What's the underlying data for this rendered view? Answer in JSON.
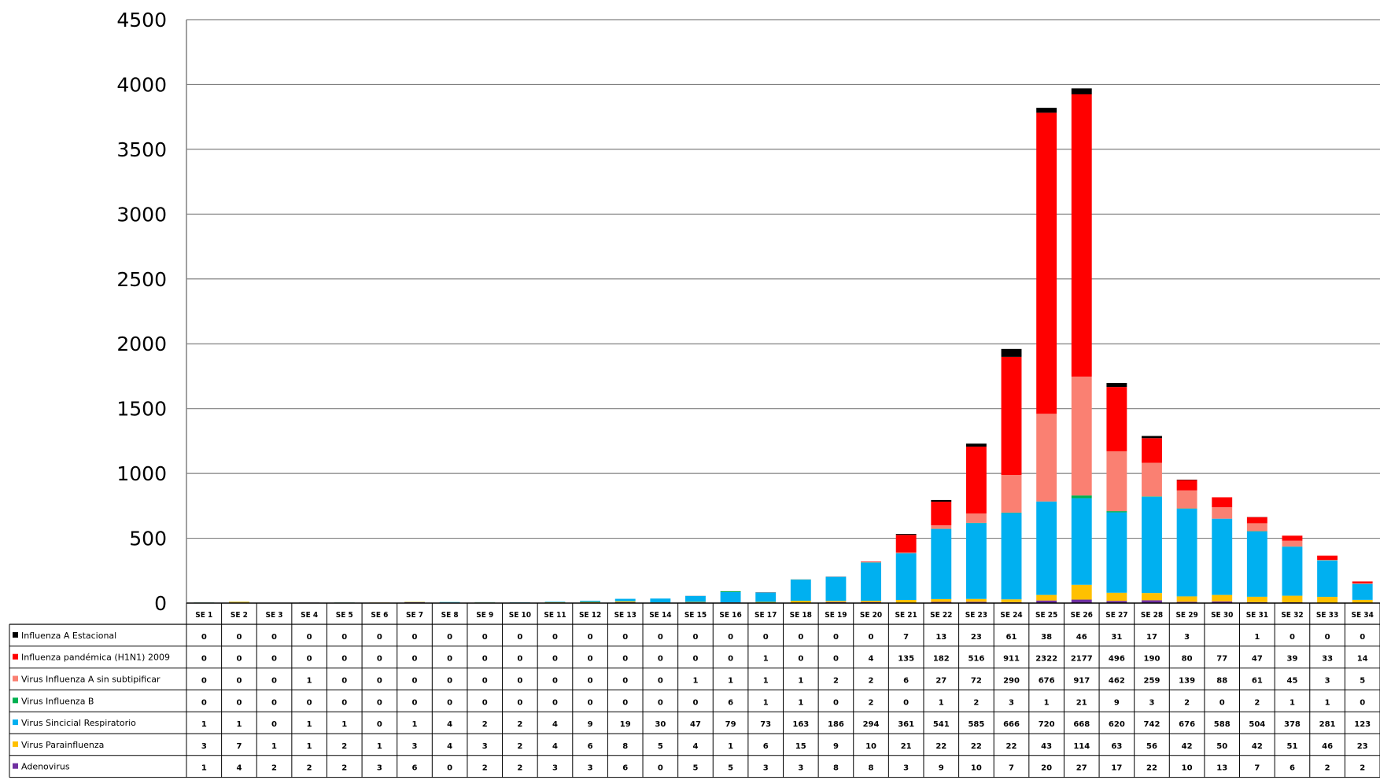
{
  "chart_data": {
    "type": "bar",
    "stacked": true,
    "ylim": [
      0,
      4500
    ],
    "yticks": [
      "0",
      "500",
      "1000",
      "1500",
      "2000",
      "2500",
      "3000",
      "3500",
      "4000",
      "4500"
    ],
    "grid": true,
    "legend": "data-table",
    "categories": [
      "SE 1",
      "SE 2",
      "SE 3",
      "SE 4",
      "SE 5",
      "SE 6",
      "SE 7",
      "SE 8",
      "SE 9",
      "SE 10",
      "SE 11",
      "SE 12",
      "SE 13",
      "SE 14",
      "SE 15",
      "SE 16",
      "SE 17",
      "SE 18",
      "SE 19",
      "SE 20",
      "SE 21",
      "SE 22",
      "SE 23",
      "SE 24",
      "SE 25",
      "SE 26",
      "SE 27",
      "SE 28",
      "SE 29",
      "SE 30",
      "SE 31",
      "SE 32",
      "SE 33",
      "SE 34"
    ],
    "series": [
      {
        "name": "Influenza A Estacional",
        "color": "#000000",
        "values": [
          0,
          0,
          0,
          0,
          0,
          0,
          0,
          0,
          0,
          0,
          0,
          0,
          0,
          0,
          0,
          0,
          0,
          0,
          0,
          0,
          7,
          13,
          23,
          61,
          38,
          46,
          31,
          17,
          3,
          null,
          1,
          0,
          0,
          0
        ]
      },
      {
        "name": "Influenza pandémica (H1N1) 2009",
        "color": "#ff0000",
        "values": [
          0,
          0,
          0,
          0,
          0,
          0,
          0,
          0,
          0,
          0,
          0,
          0,
          0,
          0,
          0,
          0,
          1,
          0,
          0,
          4,
          135,
          182,
          516,
          911,
          2322,
          2177,
          496,
          190,
          80,
          77,
          47,
          39,
          33,
          14
        ]
      },
      {
        "name": "Virus Influenza A sin subtipificar",
        "color": "#fa8072",
        "values": [
          0,
          0,
          0,
          1,
          0,
          0,
          0,
          0,
          0,
          0,
          0,
          0,
          0,
          0,
          1,
          1,
          1,
          1,
          2,
          2,
          6,
          27,
          72,
          290,
          676,
          917,
          462,
          259,
          139,
          88,
          61,
          45,
          3,
          5
        ]
      },
      {
        "name": "Virus Influenza B",
        "color": "#00b050",
        "values": [
          0,
          0,
          0,
          0,
          0,
          0,
          0,
          0,
          0,
          0,
          0,
          0,
          0,
          0,
          0,
          6,
          1,
          1,
          0,
          2,
          0,
          1,
          2,
          3,
          1,
          21,
          9,
          3,
          2,
          0,
          2,
          1,
          1,
          0
        ]
      },
      {
        "name": "Virus Sincicial Respiratorio",
        "color": "#00b0f0",
        "values": [
          1,
          1,
          0,
          1,
          1,
          0,
          1,
          4,
          2,
          2,
          4,
          9,
          19,
          30,
          47,
          79,
          73,
          163,
          186,
          294,
          361,
          541,
          585,
          666,
          720,
          668,
          620,
          742,
          676,
          588,
          504,
          378,
          281,
          123
        ]
      },
      {
        "name": "Virus Parainfluenza",
        "color": "#ffc000",
        "values": [
          3,
          7,
          1,
          1,
          2,
          1,
          3,
          4,
          3,
          2,
          4,
          6,
          8,
          5,
          4,
          1,
          6,
          15,
          9,
          10,
          21,
          22,
          22,
          22,
          43,
          114,
          63,
          56,
          42,
          50,
          42,
          51,
          46,
          23
        ]
      },
      {
        "name": "Adenovirus",
        "color": "#7030a0",
        "values": [
          1,
          4,
          2,
          2,
          2,
          3,
          6,
          0,
          2,
          2,
          3,
          3,
          6,
          0,
          5,
          5,
          3,
          3,
          8,
          8,
          3,
          9,
          10,
          7,
          20,
          27,
          17,
          22,
          10,
          13,
          7,
          6,
          2,
          2
        ]
      }
    ]
  }
}
